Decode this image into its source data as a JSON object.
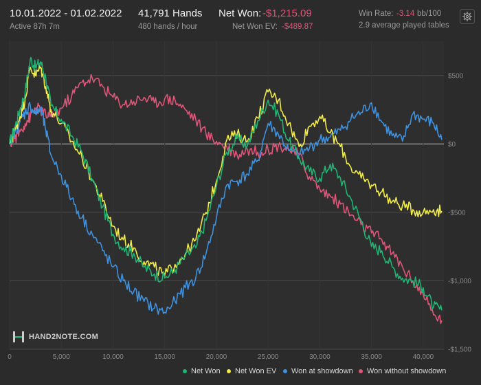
{
  "header": {
    "date_range": "10.01.2022 - 01.02.2022",
    "active": "Active 87h 7m",
    "hands": "41,791 Hands",
    "hands_per_hour": "480 hands / hour",
    "net_won_label": "Net Won:",
    "net_won_value": "-$1,215.09",
    "net_won_ev_label": "Net Won  EV:",
    "net_won_ev_value": "-$489.87",
    "win_rate_label": "Win Rate:",
    "win_rate_value": "-3.14",
    "win_rate_unit": "bb/100",
    "avg_tables": "2.9 average played tables",
    "settings_icon": "gear-icon"
  },
  "logo": {
    "text": "HAND2NOTE.COM"
  },
  "colors": {
    "background": "#2b2b2b",
    "net_won": "#1fb573",
    "net_won_ev": "#f2ec4a",
    "won_at_showdown": "#3e92e0",
    "won_without_showdown": "#e0557a",
    "negative_text": "#e0557a"
  },
  "chart_data": {
    "type": "line",
    "xlim": [
      0,
      42000
    ],
    "ylim": [
      -1500,
      750
    ],
    "x_ticks": [
      0,
      5000,
      10000,
      15000,
      20000,
      25000,
      30000,
      35000,
      40000
    ],
    "x_tick_labels": [
      "0",
      "5,000",
      "10,000",
      "15,000",
      "20,000",
      "25,000",
      "30,000",
      "35,000",
      "40,000"
    ],
    "y_ticks": [
      500,
      0,
      -500,
      -1000,
      -1500
    ],
    "y_tick_labels": [
      "$500",
      "$0",
      "-$500",
      "-$1,000",
      "-$1,500"
    ],
    "grid": true,
    "legend_position": "bottom-right",
    "series": [
      {
        "name": "Net Won",
        "color": "#1fb573",
        "points": [
          [
            0,
            0
          ],
          [
            500,
            120
          ],
          [
            1000,
            250
          ],
          [
            1500,
            380
          ],
          [
            2000,
            620
          ],
          [
            2500,
            560
          ],
          [
            3000,
            600
          ],
          [
            3500,
            480
          ],
          [
            4000,
            280
          ],
          [
            5000,
            180
          ],
          [
            6000,
            60
          ],
          [
            7000,
            -60
          ],
          [
            8000,
            -260
          ],
          [
            9000,
            -460
          ],
          [
            10000,
            -660
          ],
          [
            11000,
            -760
          ],
          [
            12000,
            -800
          ],
          [
            13000,
            -900
          ],
          [
            14000,
            -950
          ],
          [
            15000,
            -980
          ],
          [
            16000,
            -920
          ],
          [
            17000,
            -820
          ],
          [
            18000,
            -760
          ],
          [
            19000,
            -560
          ],
          [
            20000,
            -310
          ],
          [
            21000,
            -60
          ],
          [
            22000,
            40
          ],
          [
            23000,
            -10
          ],
          [
            24000,
            170
          ],
          [
            25000,
            320
          ],
          [
            26000,
            220
          ],
          [
            27000,
            20
          ],
          [
            28000,
            -100
          ],
          [
            29000,
            -200
          ],
          [
            30000,
            -250
          ],
          [
            31000,
            -150
          ],
          [
            32000,
            -250
          ],
          [
            33000,
            -400
          ],
          [
            34000,
            -560
          ],
          [
            35000,
            -750
          ],
          [
            36000,
            -780
          ],
          [
            37000,
            -900
          ],
          [
            38000,
            -980
          ],
          [
            39000,
            -1000
          ],
          [
            40000,
            -1050
          ],
          [
            41000,
            -1190
          ],
          [
            41791,
            -1215
          ]
        ]
      },
      {
        "name": "Net Won  EV",
        "color": "#f2ec4a",
        "points": [
          [
            0,
            0
          ],
          [
            500,
            100
          ],
          [
            1000,
            200
          ],
          [
            1500,
            330
          ],
          [
            2000,
            560
          ],
          [
            2500,
            500
          ],
          [
            3000,
            560
          ],
          [
            3500,
            420
          ],
          [
            4000,
            250
          ],
          [
            5000,
            150
          ],
          [
            6000,
            20
          ],
          [
            7000,
            -100
          ],
          [
            8000,
            -260
          ],
          [
            9000,
            -420
          ],
          [
            10000,
            -600
          ],
          [
            11000,
            -700
          ],
          [
            12000,
            -760
          ],
          [
            13000,
            -860
          ],
          [
            14000,
            -900
          ],
          [
            15000,
            -960
          ],
          [
            16000,
            -880
          ],
          [
            17000,
            -800
          ],
          [
            18000,
            -700
          ],
          [
            19000,
            -500
          ],
          [
            20000,
            -270
          ],
          [
            21000,
            30
          ],
          [
            22000,
            70
          ],
          [
            23000,
            20
          ],
          [
            24000,
            190
          ],
          [
            25000,
            380
          ],
          [
            26000,
            320
          ],
          [
            27000,
            150
          ],
          [
            28000,
            -20
          ],
          [
            29000,
            130
          ],
          [
            30000,
            200
          ],
          [
            31000,
            80
          ],
          [
            32000,
            -20
          ],
          [
            33000,
            -170
          ],
          [
            34000,
            -250
          ],
          [
            35000,
            -300
          ],
          [
            36000,
            -350
          ],
          [
            37000,
            -420
          ],
          [
            38000,
            -450
          ],
          [
            39000,
            -480
          ],
          [
            40000,
            -500
          ],
          [
            41000,
            -480
          ],
          [
            41791,
            -490
          ]
        ]
      },
      {
        "name": "Won at showdown",
        "color": "#3e92e0",
        "points": [
          [
            0,
            0
          ],
          [
            500,
            80
          ],
          [
            1000,
            160
          ],
          [
            1500,
            230
          ],
          [
            2000,
            280
          ],
          [
            2500,
            220
          ],
          [
            3000,
            260
          ],
          [
            3500,
            100
          ],
          [
            4000,
            -80
          ],
          [
            5000,
            -230
          ],
          [
            6000,
            -400
          ],
          [
            7000,
            -540
          ],
          [
            8000,
            -660
          ],
          [
            9000,
            -780
          ],
          [
            10000,
            -900
          ],
          [
            11000,
            -1000
          ],
          [
            12000,
            -1080
          ],
          [
            13000,
            -1150
          ],
          [
            14000,
            -1200
          ],
          [
            15000,
            -1230
          ],
          [
            16000,
            -1150
          ],
          [
            17000,
            -1050
          ],
          [
            18000,
            -980
          ],
          [
            19000,
            -800
          ],
          [
            20000,
            -540
          ],
          [
            21000,
            -300
          ],
          [
            22000,
            -270
          ],
          [
            23000,
            -220
          ],
          [
            24000,
            -120
          ],
          [
            25000,
            150
          ],
          [
            26000,
            70
          ],
          [
            27000,
            -50
          ],
          [
            28000,
            -80
          ],
          [
            29000,
            -30
          ],
          [
            30000,
            30
          ],
          [
            31000,
            50
          ],
          [
            32000,
            100
          ],
          [
            33000,
            180
          ],
          [
            34000,
            230
          ],
          [
            35000,
            300
          ],
          [
            36000,
            160
          ],
          [
            37000,
            60
          ],
          [
            38000,
            20
          ],
          [
            39000,
            220
          ],
          [
            40000,
            180
          ],
          [
            41000,
            150
          ],
          [
            41791,
            30
          ]
        ]
      },
      {
        "name": "Won without showdown",
        "color": "#e0557a",
        "points": [
          [
            0,
            0
          ],
          [
            500,
            40
          ],
          [
            1000,
            90
          ],
          [
            1500,
            150
          ],
          [
            2000,
            200
          ],
          [
            2500,
            260
          ],
          [
            3000,
            250
          ],
          [
            3500,
            210
          ],
          [
            4000,
            200
          ],
          [
            5000,
            260
          ],
          [
            6000,
            350
          ],
          [
            7000,
            450
          ],
          [
            8000,
            480
          ],
          [
            9000,
            420
          ],
          [
            10000,
            340
          ],
          [
            11000,
            290
          ],
          [
            12000,
            310
          ],
          [
            13000,
            340
          ],
          [
            14000,
            300
          ],
          [
            15000,
            330
          ],
          [
            16000,
            320
          ],
          [
            17000,
            250
          ],
          [
            18000,
            180
          ],
          [
            19000,
            70
          ],
          [
            20000,
            20
          ],
          [
            21000,
            -20
          ],
          [
            22000,
            -80
          ],
          [
            23000,
            -40
          ],
          [
            24000,
            -60
          ],
          [
            25000,
            -40
          ],
          [
            26000,
            -10
          ],
          [
            27000,
            -40
          ],
          [
            28000,
            -80
          ],
          [
            29000,
            -240
          ],
          [
            30000,
            -330
          ],
          [
            31000,
            -380
          ],
          [
            32000,
            -440
          ],
          [
            33000,
            -520
          ],
          [
            34000,
            -590
          ],
          [
            35000,
            -650
          ],
          [
            36000,
            -700
          ],
          [
            37000,
            -800
          ],
          [
            38000,
            -900
          ],
          [
            39000,
            -1000
          ],
          [
            40000,
            -1100
          ],
          [
            41000,
            -1250
          ],
          [
            41791,
            -1290
          ]
        ]
      }
    ]
  }
}
